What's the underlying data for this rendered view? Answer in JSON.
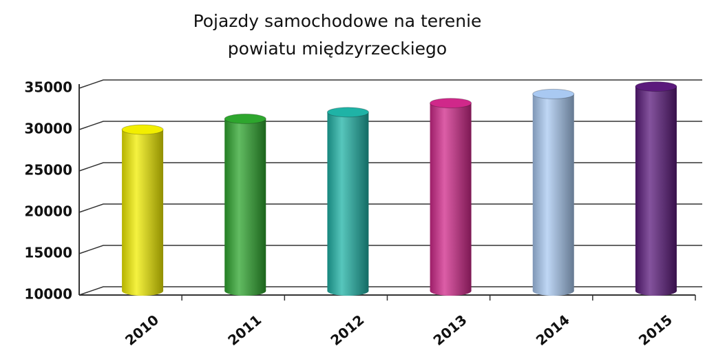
{
  "chart_data": {
    "type": "bar",
    "title": [
      "Pojazdy samochodowe na terenie",
      "powiatu międzyrzeckiego"
    ],
    "categories": [
      "2010",
      "2011",
      "2012",
      "2013",
      "2014",
      "2015"
    ],
    "values": [
      29500,
      30800,
      31600,
      32700,
      33800,
      34700
    ],
    "colors": [
      "#f2ee00",
      "#2ea62e",
      "#1fb3a6",
      "#d0288a",
      "#a9c9f2",
      "#5b1a7c"
    ],
    "ylim": [
      10000,
      35000
    ],
    "yticks": [
      10000,
      15000,
      20000,
      25000,
      30000,
      35000
    ],
    "grid": true
  }
}
